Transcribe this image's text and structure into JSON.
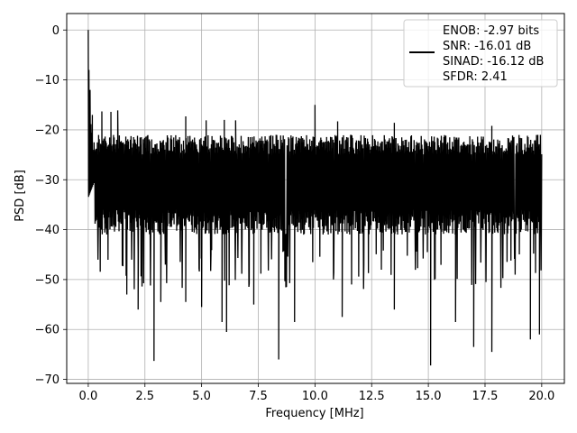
{
  "chart_data": {
    "type": "line",
    "title": "",
    "xlabel": "Frequency [MHz]",
    "ylabel": "PSD [dB]",
    "xlim": [
      -0.95,
      21.0
    ],
    "ylim": [
      -70.8,
      3.3
    ],
    "x_ticks": [
      0.0,
      2.5,
      5.0,
      7.5,
      10.0,
      12.5,
      15.0,
      17.5,
      20.0
    ],
    "x_tick_labels": [
      "0.0",
      "2.5",
      "5.0",
      "7.5",
      "10.0",
      "12.5",
      "15.0",
      "17.5",
      "20.0"
    ],
    "y_ticks": [
      0,
      -10,
      -20,
      -30,
      -40,
      -50,
      -60,
      -70
    ],
    "y_tick_labels": [
      "0",
      "−10",
      "−20",
      "−30",
      "−40",
      "−50",
      "−60",
      "−70"
    ],
    "grid": true,
    "legend_position": "top-right",
    "series": [
      {
        "name": "ENOB: -2.97 bits\nSNR: -16.01 dB\nSINAD: -16.12 dB\nSFDR: 2.41",
        "legend_lines": [
          "ENOB: -2.97 bits",
          "SNR: -16.01 dB",
          "SINAD: -16.12 dB",
          "SFDR: 2.41"
        ],
        "color": "#000000",
        "x_range": [
          0,
          20
        ],
        "peak": {
          "x": 0.0,
          "y": 0
        },
        "noise_floor_mean": -30,
        "noise_band_upper": -21,
        "noise_band_lower": -41,
        "spikes_up": [
          {
            "x": 0.03,
            "y": -8
          },
          {
            "x": 0.08,
            "y": -12
          },
          {
            "x": 0.18,
            "y": -17
          },
          {
            "x": 0.6,
            "y": -16.3
          },
          {
            "x": 1.0,
            "y": -16.4
          },
          {
            "x": 1.3,
            "y": -16.1
          },
          {
            "x": 4.3,
            "y": -17.3
          },
          {
            "x": 5.2,
            "y": -18.1
          },
          {
            "x": 6.0,
            "y": -18.0
          },
          {
            "x": 6.5,
            "y": -18.1
          },
          {
            "x": 10.0,
            "y": -15.0
          },
          {
            "x": 11.0,
            "y": -18.3
          },
          {
            "x": 13.5,
            "y": -18.6
          },
          {
            "x": 17.8,
            "y": -19.2
          }
        ],
        "spikes_down": [
          {
            "x": 2.9,
            "y": -66.3
          },
          {
            "x": 1.7,
            "y": -53.0
          },
          {
            "x": 2.2,
            "y": -56.0
          },
          {
            "x": 3.2,
            "y": -54.5
          },
          {
            "x": 4.3,
            "y": -54.5
          },
          {
            "x": 5.0,
            "y": -55.5
          },
          {
            "x": 5.9,
            "y": -58.5
          },
          {
            "x": 6.1,
            "y": -60.5
          },
          {
            "x": 7.3,
            "y": -55.0
          },
          {
            "x": 8.4,
            "y": -66.0
          },
          {
            "x": 9.1,
            "y": -58.5
          },
          {
            "x": 11.2,
            "y": -57.5
          },
          {
            "x": 13.5,
            "y": -56.0
          },
          {
            "x": 15.1,
            "y": -67.2
          },
          {
            "x": 16.2,
            "y": -58.5
          },
          {
            "x": 17.0,
            "y": -63.5
          },
          {
            "x": 17.8,
            "y": -64.5
          },
          {
            "x": 19.5,
            "y": -62.0
          },
          {
            "x": 19.9,
            "y": -61.0
          }
        ]
      }
    ]
  }
}
